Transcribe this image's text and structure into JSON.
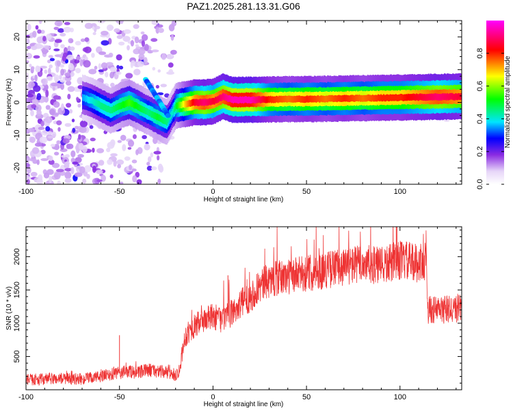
{
  "title": "PAZ1.2025.281.13.31.G06",
  "chart_data": [
    {
      "type": "heatmap",
      "name": "spectrogram",
      "xlabel": "Height of straight line (km)",
      "ylabel": "Frequency (Hz)",
      "xlim": [
        -100,
        133
      ],
      "ylim": [
        -25,
        25
      ],
      "xticks": [
        -100,
        -50,
        0,
        50,
        100
      ],
      "yticks": [
        -20,
        -10,
        0,
        10,
        20
      ],
      "colorbar": {
        "label": "Normalized spectral amplitude",
        "range": [
          0,
          1
        ],
        "ticks": [
          0.0,
          0.2,
          0.4,
          0.6,
          0.8
        ],
        "colors": [
          "#ffffff",
          "#e6d5f8",
          "#8a2be2",
          "#0000ff",
          "#00e5ff",
          "#00ff00",
          "#ffff00",
          "#ff0000",
          "#ff00ff"
        ]
      },
      "ridge": {
        "x": [
          -70,
          -65,
          -60,
          -55,
          -50,
          -45,
          -40,
          -35,
          -30,
          -25,
          -22,
          -20,
          -15,
          -10,
          -5,
          0,
          5,
          10,
          20,
          30,
          40,
          50,
          60,
          70,
          80,
          90,
          100,
          110,
          120,
          133
        ],
        "freq": [
          1.5,
          0.5,
          -1,
          -2.5,
          -1,
          0,
          -1.5,
          -3,
          -4.5,
          -6,
          -3,
          -1,
          -0.5,
          0,
          0,
          0.3,
          1.8,
          0.8,
          0.8,
          0.9,
          1.0,
          1.0,
          1.1,
          1.2,
          1.3,
          1.4,
          1.5,
          1.6,
          1.7,
          1.8
        ],
        "amplitude": [
          0.35,
          0.4,
          0.45,
          0.45,
          0.5,
          0.55,
          0.5,
          0.45,
          0.5,
          0.45,
          0.4,
          0.5,
          0.7,
          0.85,
          0.9,
          0.85,
          0.9,
          0.95,
          0.95,
          0.8,
          0.75,
          0.8,
          0.75,
          0.8,
          0.75,
          0.8,
          0.8,
          0.85,
          0.9,
          0.85
        ]
      },
      "noise_region_x": [
        -100,
        -20
      ]
    },
    {
      "type": "line",
      "name": "snr",
      "xlabel": "Height of straight line (km)",
      "ylabel": "SNR (10 * v/v)",
      "xlim": [
        -100,
        133
      ],
      "ylim": [
        0,
        2450
      ],
      "xticks": [
        -100,
        -50,
        0,
        50,
        100
      ],
      "yticks": [
        500,
        1000,
        1500,
        2000
      ],
      "color": "#ee3333",
      "series": {
        "x": [
          -100,
          -90,
          -80,
          -70,
          -60,
          -50,
          -45,
          -40,
          -35,
          -30,
          -25,
          -20,
          -18,
          -15,
          -10,
          -5,
          0,
          5,
          10,
          15,
          20,
          25,
          30,
          40,
          50,
          60,
          70,
          80,
          90,
          100,
          110,
          114,
          115,
          120,
          133
        ],
        "y": [
          150,
          160,
          170,
          160,
          200,
          250,
          280,
          250,
          300,
          280,
          260,
          220,
          300,
          800,
          950,
          1050,
          1100,
          1050,
          1150,
          1300,
          1400,
          1550,
          1650,
          1700,
          1750,
          1800,
          1850,
          1900,
          1850,
          1950,
          1900,
          1950,
          1200,
          1200,
          1220
        ]
      },
      "spikes": [
        {
          "x": -50,
          "y": 820
        },
        {
          "x": 8,
          "y": 1720
        },
        {
          "x": 98,
          "y": 2450
        }
      ]
    }
  ]
}
